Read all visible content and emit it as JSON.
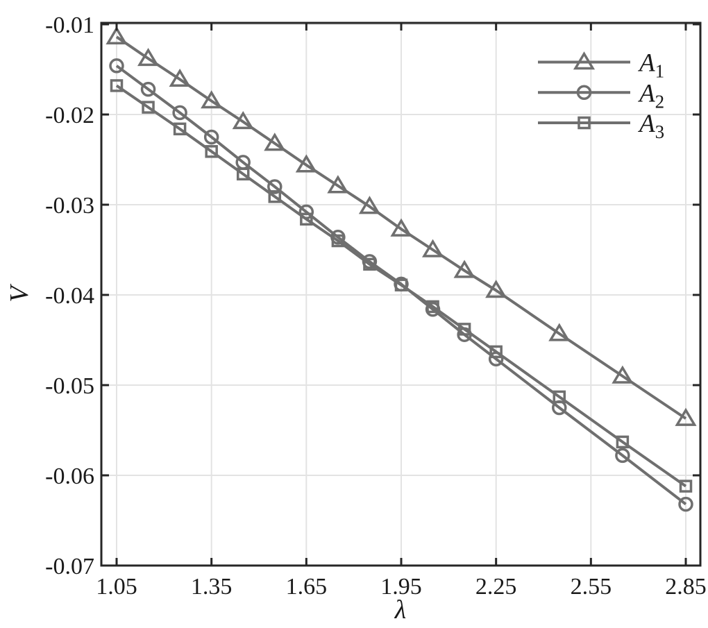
{
  "figure": {
    "background": "#ffffff"
  },
  "chart_data": {
    "type": "line",
    "title": "",
    "xlabel": "λ",
    "ylabel": "V",
    "xlim": [
      1.0,
      2.9
    ],
    "ylim": [
      -0.07,
      -0.0098
    ],
    "grid": true,
    "legend": {
      "position": "top-right",
      "frame": false,
      "items": [
        {
          "text": "A",
          "subscript": "1",
          "marker": "triangle"
        },
        {
          "text": "A",
          "subscript": "2",
          "marker": "circle"
        },
        {
          "text": "A",
          "subscript": "3",
          "marker": "square"
        }
      ]
    },
    "xticks": {
      "values": [
        1.05,
        1.35,
        1.65,
        1.95,
        2.25,
        2.55,
        2.85
      ],
      "labels": [
        "1.05",
        "1.35",
        "1.65",
        "1.95",
        "2.25",
        "2.55",
        "2.85"
      ]
    },
    "yticks": {
      "values": [
        -0.01,
        -0.02,
        -0.03,
        -0.04,
        -0.05,
        -0.06,
        -0.07
      ],
      "labels": [
        "-0.01",
        "-0.02",
        "-0.03",
        "-0.04",
        "-0.05",
        "-0.06",
        "-0.07"
      ]
    },
    "x": [
      1.05,
      1.15,
      1.25,
      1.35,
      1.45,
      1.55,
      1.65,
      1.75,
      1.85,
      1.95,
      2.05,
      2.15,
      2.25,
      2.45,
      2.65,
      2.85
    ],
    "series": [
      {
        "name": "A1",
        "marker": "triangle",
        "values": [
          -0.0114,
          -0.0138,
          -0.0161,
          -0.0185,
          -0.0208,
          -0.0232,
          -0.0256,
          -0.0279,
          -0.0302,
          -0.0327,
          -0.035,
          -0.0373,
          -0.0395,
          -0.0443,
          -0.049,
          -0.0537
        ]
      },
      {
        "name": "A2",
        "marker": "circle",
        "values": [
          -0.0146,
          -0.0172,
          -0.0198,
          -0.0225,
          -0.0253,
          -0.028,
          -0.0308,
          -0.0336,
          -0.0363,
          -0.0388,
          -0.0416,
          -0.0444,
          -0.0471,
          -0.0525,
          -0.0578,
          -0.0632
        ]
      },
      {
        "name": "A3",
        "marker": "square",
        "values": [
          -0.0168,
          -0.0192,
          -0.0216,
          -0.0241,
          -0.0266,
          -0.0291,
          -0.0316,
          -0.034,
          -0.0366,
          -0.0389,
          -0.0413,
          -0.0438,
          -0.0463,
          -0.0513,
          -0.0563,
          -0.0612
        ]
      }
    ],
    "colors": {
      "series": "#6f6f6f",
      "axis": "#262626",
      "grid": "#e3e3e3",
      "text": "#1a1a1a",
      "background": "#ffffff"
    }
  }
}
